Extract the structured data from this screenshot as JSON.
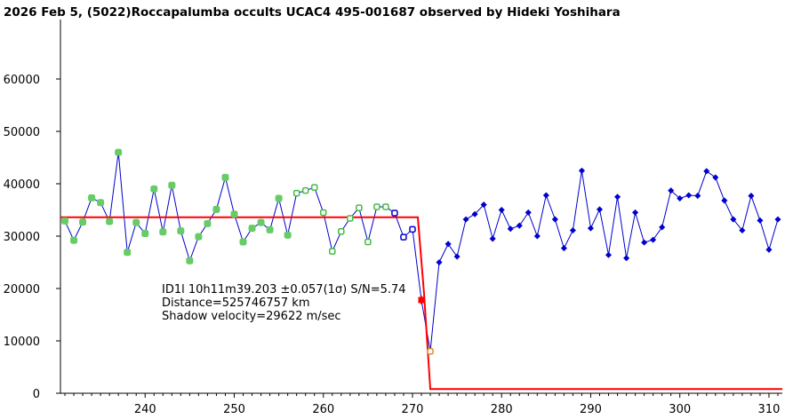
{
  "chart_data": {
    "type": "line",
    "title": "2026 Feb 5, (5022)Roccapalumba occults UCAC4 495-001687 observed by Hideki Yoshihara",
    "xlabel": "",
    "ylabel": "",
    "xlim": [
      230.5,
      311.5
    ],
    "ylim": [
      0,
      70000
    ],
    "x_ticks": [
      240,
      250,
      260,
      270,
      280,
      290,
      300,
      310
    ],
    "y_ticks": [
      0,
      10000,
      20000,
      30000,
      40000,
      50000,
      60000
    ],
    "annotations": [
      "ID1l 10h11m39.203 ±0.057(1σ) S/N=5.74",
      "Distance=525746757 km",
      "Shadow velocity=29622 m/sec"
    ],
    "colors": {
      "line": "#0000cc",
      "fill_green": "#66cc66",
      "open_green": "#44bb44",
      "open_blue": "#0000cc",
      "model": "#ff0000",
      "orange": "#e08a2a"
    },
    "series": [
      {
        "x": [
          231,
          232,
          233,
          234,
          235,
          236,
          237,
          238,
          239,
          240,
          241,
          242,
          243,
          244,
          245,
          246,
          247,
          248,
          249,
          250,
          251,
          252,
          253,
          254,
          255,
          256,
          257,
          258,
          259,
          260,
          261,
          262,
          263,
          264,
          265,
          266,
          267,
          268,
          269,
          270,
          271,
          272,
          273,
          274,
          275,
          276,
          277,
          278,
          279,
          280,
          281,
          282,
          283,
          284,
          285,
          286,
          287,
          288,
          289,
          290,
          291,
          292,
          293,
          294,
          295,
          296,
          297,
          298,
          299,
          300,
          301,
          302,
          303,
          304,
          305,
          306,
          307,
          308,
          309,
          310,
          311
        ],
        "values": [
          32900,
          29200,
          32700,
          37300,
          36400,
          32800,
          46000,
          26900,
          32600,
          30500,
          39000,
          30800,
          39700,
          31000,
          25300,
          29900,
          32400,
          35100,
          41200,
          34200,
          28900,
          31500,
          32600,
          31200,
          37200,
          30200,
          38200,
          38700,
          39300,
          34500,
          27100,
          30900,
          33400,
          35400,
          28900,
          35600,
          35600,
          34400,
          29800,
          31300,
          17800,
          8000,
          25000,
          28500,
          26100,
          33200,
          34200,
          36000,
          29500,
          35000,
          31400,
          32000,
          34500,
          30000,
          37800,
          33200,
          27700,
          31100,
          42500,
          31500,
          35100,
          26400,
          37500,
          25800,
          34500,
          28800,
          29300,
          31700,
          38700,
          37200,
          37800,
          37700,
          42400,
          41200,
          36800,
          33200,
          31100,
          37700,
          33000,
          27400,
          33200
        ],
        "markers": [
          "fg",
          "fg",
          "fg",
          "fg",
          "fg",
          "fg",
          "fg",
          "fg",
          "fg",
          "fg",
          "fg",
          "fg",
          "fg",
          "fg",
          "fg",
          "fg",
          "fg",
          "fg",
          "fg",
          "fg",
          "fg",
          "fg",
          "fg",
          "fg",
          "fg",
          "fg",
          "og",
          "og",
          "og",
          "og",
          "og",
          "og",
          "og",
          "og",
          "og",
          "og",
          "og",
          "ob",
          "ob",
          "ob",
          "red",
          "oo",
          "b",
          "b",
          "b",
          "b",
          "b",
          "b",
          "b",
          "b",
          "b",
          "b",
          "b",
          "b",
          "b",
          "b",
          "b",
          "b",
          "b",
          "b",
          "b",
          "b",
          "b",
          "b",
          "b",
          "b",
          "b",
          "b",
          "b",
          "b",
          "b",
          "b",
          "b",
          "b",
          "b",
          "b",
          "b",
          "b",
          "b",
          "b",
          "b"
        ]
      }
    ],
    "model_curve": {
      "x": [
        230.5,
        270.6,
        271.3,
        272.0,
        311.5
      ],
      "values": [
        33600,
        33600,
        19000,
        800,
        800
      ]
    }
  }
}
